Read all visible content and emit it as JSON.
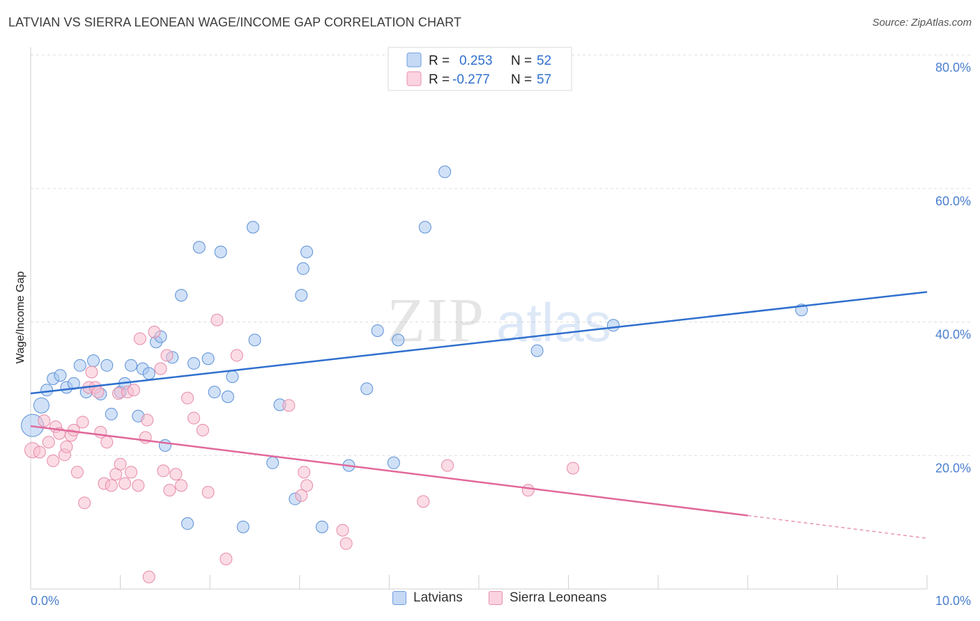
{
  "header": {
    "title": "LATVIAN VS SIERRA LEONEAN WAGE/INCOME GAP CORRELATION CHART",
    "source": "Source: ZipAtlas.com"
  },
  "legend": {
    "r_label": "R =",
    "n_label": "N =",
    "items": [
      {
        "r": "0.253",
        "n": "52"
      },
      {
        "r": "-0.277",
        "n": "57"
      }
    ]
  },
  "bottom_legend": [
    "Latvians",
    "Sierra Leoneans"
  ],
  "watermark": "ZIPatlas",
  "colors": {
    "blue_fill": "#a9c8f0",
    "blue_stroke": "#5b8fd6",
    "blue_line": "#2f6fce",
    "pink_fill": "#f7bfd0",
    "pink_stroke": "#e68aa8",
    "pink_line": "#e0689a",
    "axis_text": "#4a7fd0"
  },
  "chart_data": {
    "type": "scatter",
    "title": "LATVIAN VS SIERRA LEONEAN WAGE/INCOME GAP CORRELATION CHART",
    "xlabel": "",
    "ylabel": "Wage/Income Gap",
    "xlim": [
      0,
      10
    ],
    "ylim": [
      0,
      80
    ],
    "x_tick_labels": [
      "0.0%",
      "10.0%"
    ],
    "y_tick_labels": [
      "20.0%",
      "40.0%",
      "60.0%",
      "80.0%"
    ],
    "y_ticks": [
      20,
      40,
      60,
      80
    ],
    "grid": true,
    "legend_placement": "top-center",
    "series": [
      {
        "name": "Latvians",
        "r": 0.253,
        "n": 52,
        "trend": {
          "x0": 0,
          "y0": 29.3,
          "x1": 10,
          "y1": 44.5
        },
        "points": [
          [
            0.02,
            24.5,
            "big"
          ],
          [
            0.12,
            27.5,
            "med"
          ],
          [
            0.18,
            29.8
          ],
          [
            0.25,
            31.5
          ],
          [
            0.33,
            32.0
          ],
          [
            0.4,
            30.2
          ],
          [
            0.48,
            30.8
          ],
          [
            0.55,
            33.5
          ],
          [
            0.62,
            29.5
          ],
          [
            0.7,
            34.2
          ],
          [
            0.78,
            29.2
          ],
          [
            0.85,
            33.5
          ],
          [
            0.9,
            26.2
          ],
          [
            1.0,
            29.5
          ],
          [
            1.05,
            30.8
          ],
          [
            1.12,
            33.5
          ],
          [
            1.2,
            25.9
          ],
          [
            1.25,
            33.0
          ],
          [
            1.32,
            32.3
          ],
          [
            1.4,
            37.0
          ],
          [
            1.45,
            37.8
          ],
          [
            1.5,
            21.5
          ],
          [
            1.58,
            34.7
          ],
          [
            1.68,
            44.0
          ],
          [
            1.75,
            9.8
          ],
          [
            1.82,
            33.8
          ],
          [
            1.88,
            51.2
          ],
          [
            1.98,
            34.5
          ],
          [
            2.05,
            29.5
          ],
          [
            2.12,
            50.5
          ],
          [
            2.2,
            28.8
          ],
          [
            2.25,
            31.8
          ],
          [
            2.37,
            9.3
          ],
          [
            2.48,
            54.2
          ],
          [
            2.5,
            37.3
          ],
          [
            2.7,
            18.9
          ],
          [
            2.78,
            27.6
          ],
          [
            2.95,
            13.5
          ],
          [
            3.02,
            44.0
          ],
          [
            3.04,
            48.0
          ],
          [
            3.08,
            50.5
          ],
          [
            3.25,
            9.3
          ],
          [
            3.55,
            18.5
          ],
          [
            3.75,
            30.0
          ],
          [
            3.87,
            38.7
          ],
          [
            4.05,
            18.9
          ],
          [
            4.1,
            37.3
          ],
          [
            4.4,
            54.2
          ],
          [
            4.62,
            62.5
          ],
          [
            5.65,
            35.7
          ],
          [
            6.5,
            39.5
          ],
          [
            8.6,
            41.8
          ]
        ]
      },
      {
        "name": "Sierra Leoneans",
        "r": -0.277,
        "n": 57,
        "trend": {
          "x0": 0,
          "y0": 24.4,
          "x1": 8.0,
          "y1": 11.0,
          "dash_to_x": 10,
          "dash_to_y": 7.6
        },
        "points": [
          [
            0.02,
            20.8,
            "med"
          ],
          [
            0.1,
            20.5
          ],
          [
            0.15,
            25.2
          ],
          [
            0.2,
            22.0
          ],
          [
            0.25,
            19.2
          ],
          [
            0.28,
            24.3
          ],
          [
            0.32,
            23.3
          ],
          [
            0.38,
            20.1
          ],
          [
            0.4,
            21.3
          ],
          [
            0.45,
            23.0
          ],
          [
            0.48,
            23.8
          ],
          [
            0.52,
            17.5
          ],
          [
            0.58,
            25.0
          ],
          [
            0.6,
            12.9
          ],
          [
            0.65,
            30.2
          ],
          [
            0.68,
            32.5
          ],
          [
            0.72,
            30.2
          ],
          [
            0.75,
            29.5
          ],
          [
            0.78,
            23.5
          ],
          [
            0.82,
            15.8
          ],
          [
            0.85,
            22.0
          ],
          [
            0.9,
            15.5
          ],
          [
            0.95,
            17.2
          ],
          [
            0.98,
            29.3
          ],
          [
            1.0,
            18.7
          ],
          [
            1.05,
            15.8
          ],
          [
            1.08,
            29.5
          ],
          [
            1.12,
            17.5
          ],
          [
            1.15,
            29.8
          ],
          [
            1.2,
            15.5
          ],
          [
            1.22,
            37.5
          ],
          [
            1.28,
            22.7
          ],
          [
            1.3,
            25.3
          ],
          [
            1.38,
            38.5
          ],
          [
            1.45,
            33.0
          ],
          [
            1.48,
            17.7
          ],
          [
            1.52,
            35.0
          ],
          [
            1.55,
            14.8
          ],
          [
            1.62,
            17.2
          ],
          [
            1.68,
            15.5
          ],
          [
            1.75,
            28.6
          ],
          [
            1.82,
            25.6
          ],
          [
            1.92,
            23.8
          ],
          [
            1.98,
            14.5
          ],
          [
            2.08,
            40.3
          ],
          [
            2.18,
            4.5
          ],
          [
            2.3,
            35.0
          ],
          [
            2.88,
            27.5
          ],
          [
            3.02,
            14.0
          ],
          [
            3.05,
            17.5
          ],
          [
            3.08,
            15.5
          ],
          [
            3.48,
            8.8
          ],
          [
            3.52,
            6.8
          ],
          [
            4.38,
            13.1
          ],
          [
            4.65,
            18.5
          ],
          [
            5.55,
            14.8
          ],
          [
            6.05,
            18.1
          ]
        ],
        "extra_points": [
          [
            1.32,
            1.8
          ]
        ]
      }
    ]
  }
}
